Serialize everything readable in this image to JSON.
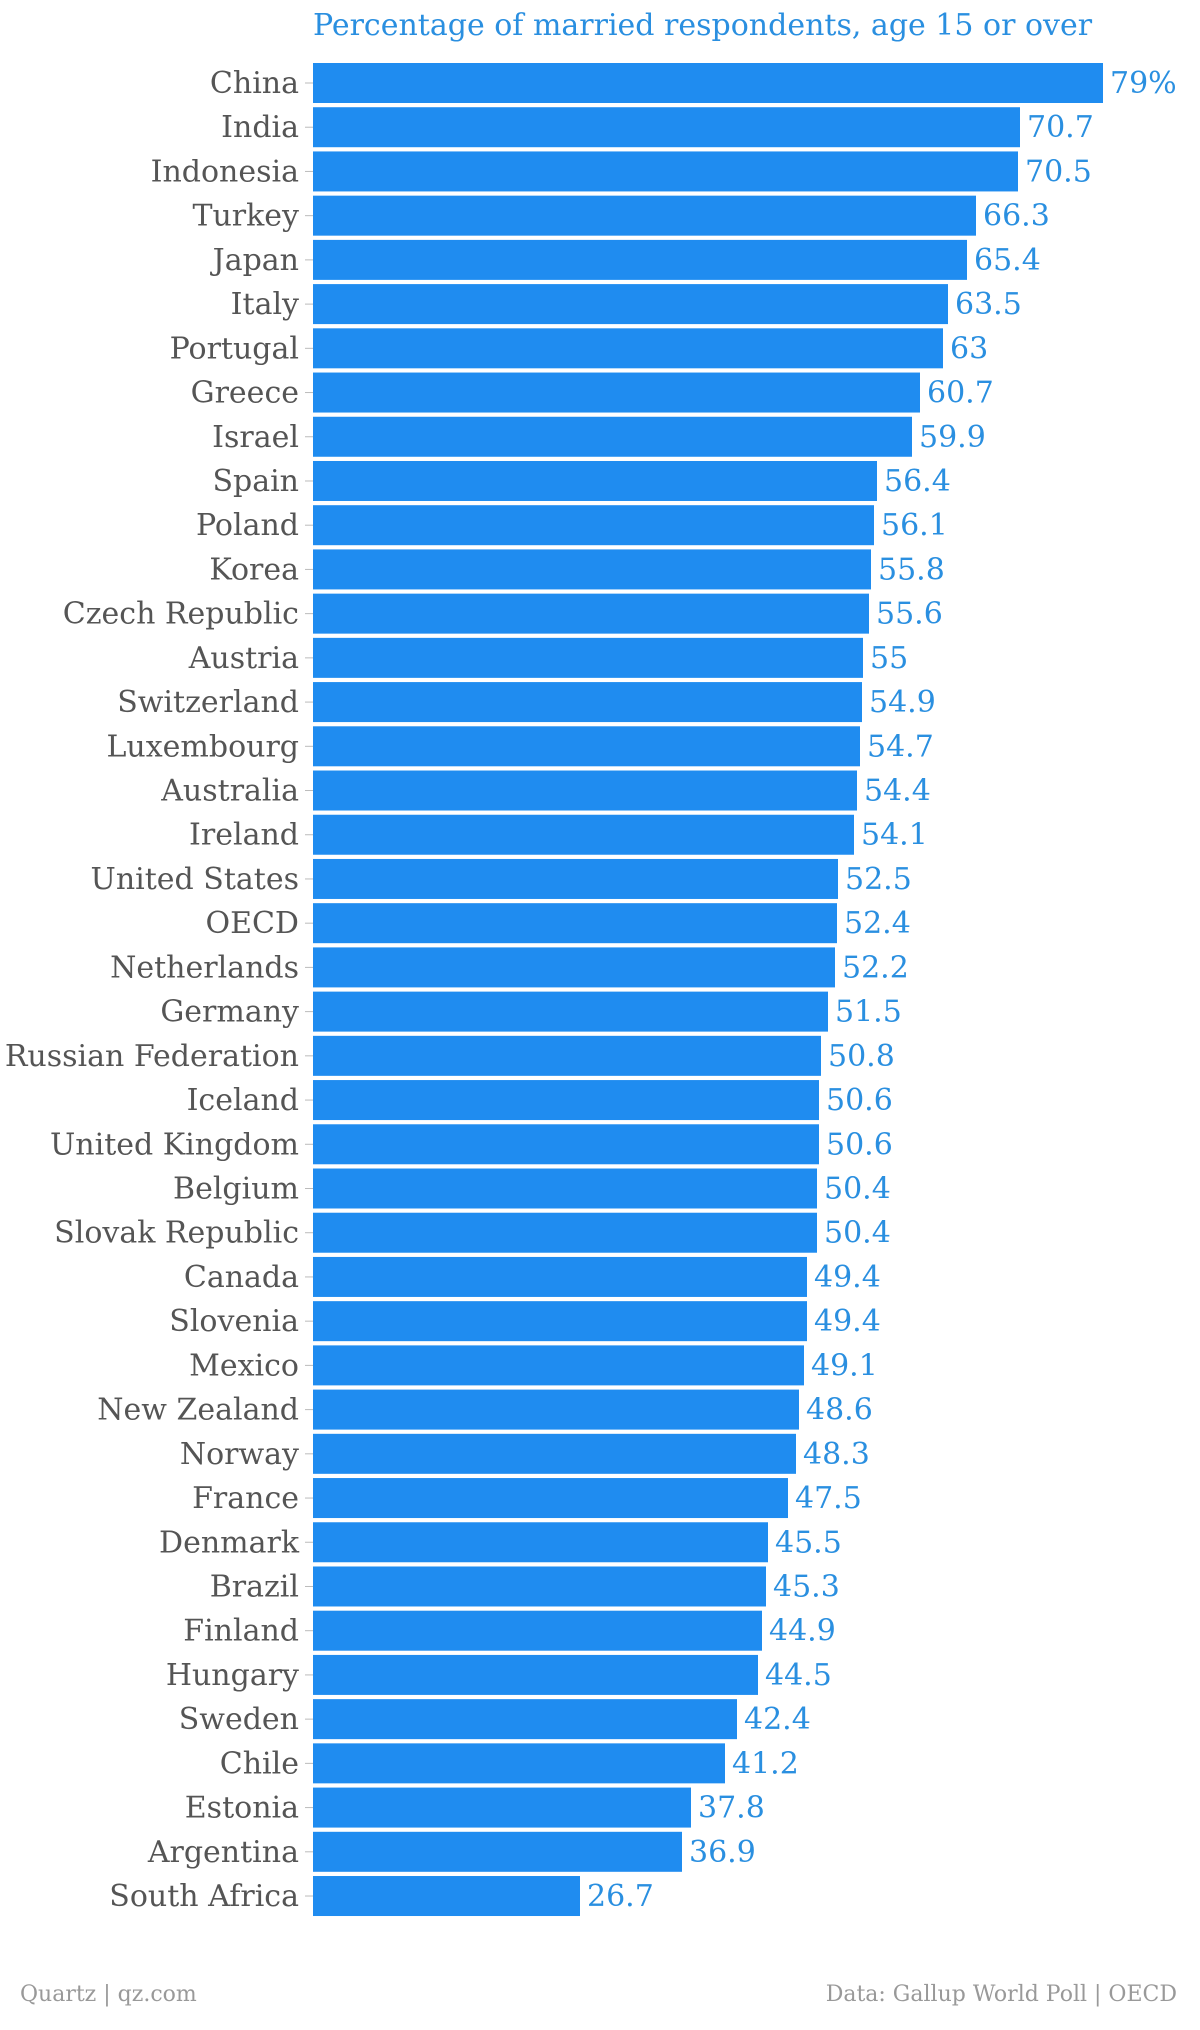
{
  "chart_data": {
    "type": "bar",
    "orientation": "horizontal",
    "title": "Percentage of married respondents, age 15 or over",
    "categories": [
      "China",
      "India",
      "Indonesia",
      "Turkey",
      "Japan",
      "Italy",
      "Portugal",
      "Greece",
      "Israel",
      "Spain",
      "Poland",
      "Korea",
      "Czech Republic",
      "Austria",
      "Switzerland",
      "Luxembourg",
      "Australia",
      "Ireland",
      "United States",
      "OECD",
      "Netherlands",
      "Germany",
      "Russian Federation",
      "Iceland",
      "United Kingdom",
      "Belgium",
      "Slovak Republic",
      "Canada",
      "Slovenia",
      "Mexico",
      "New Zealand",
      "Norway",
      "France",
      "Denmark",
      "Brazil",
      "Finland",
      "Hungary",
      "Sweden",
      "Chile",
      "Estonia",
      "Argentina",
      "South Africa"
    ],
    "values": [
      79,
      70.7,
      70.5,
      66.3,
      65.4,
      63.5,
      63,
      60.7,
      59.9,
      56.4,
      56.1,
      55.8,
      55.6,
      55,
      54.9,
      54.7,
      54.4,
      54.1,
      52.5,
      52.4,
      52.2,
      51.5,
      50.8,
      50.6,
      50.6,
      50.4,
      50.4,
      49.4,
      49.4,
      49.1,
      48.6,
      48.3,
      47.5,
      45.5,
      45.3,
      44.9,
      44.5,
      42.4,
      41.2,
      37.8,
      36.9,
      26.7
    ],
    "value_labels": [
      "79%",
      "70.7",
      "70.5",
      "66.3",
      "65.4",
      "63.5",
      "63",
      "60.7",
      "59.9",
      "56.4",
      "56.1",
      "55.8",
      "55.6",
      "55",
      "54.9",
      "54.7",
      "54.4",
      "54.1",
      "52.5",
      "52.4",
      "52.2",
      "51.5",
      "50.8",
      "50.6",
      "50.6",
      "50.4",
      "50.4",
      "49.4",
      "49.4",
      "49.1",
      "48.6",
      "48.3",
      "47.5",
      "45.5",
      "45.3",
      "44.9",
      "44.5",
      "42.4",
      "41.2",
      "37.8",
      "36.9",
      "26.7"
    ],
    "xlim": [
      0,
      79
    ],
    "bar_color": "#1f8cf0",
    "label_color": "#2a8fe0"
  },
  "footer": {
    "source_left": "Quartz | qz.com",
    "source_right": "Data: Gallup World Poll | OECD"
  }
}
